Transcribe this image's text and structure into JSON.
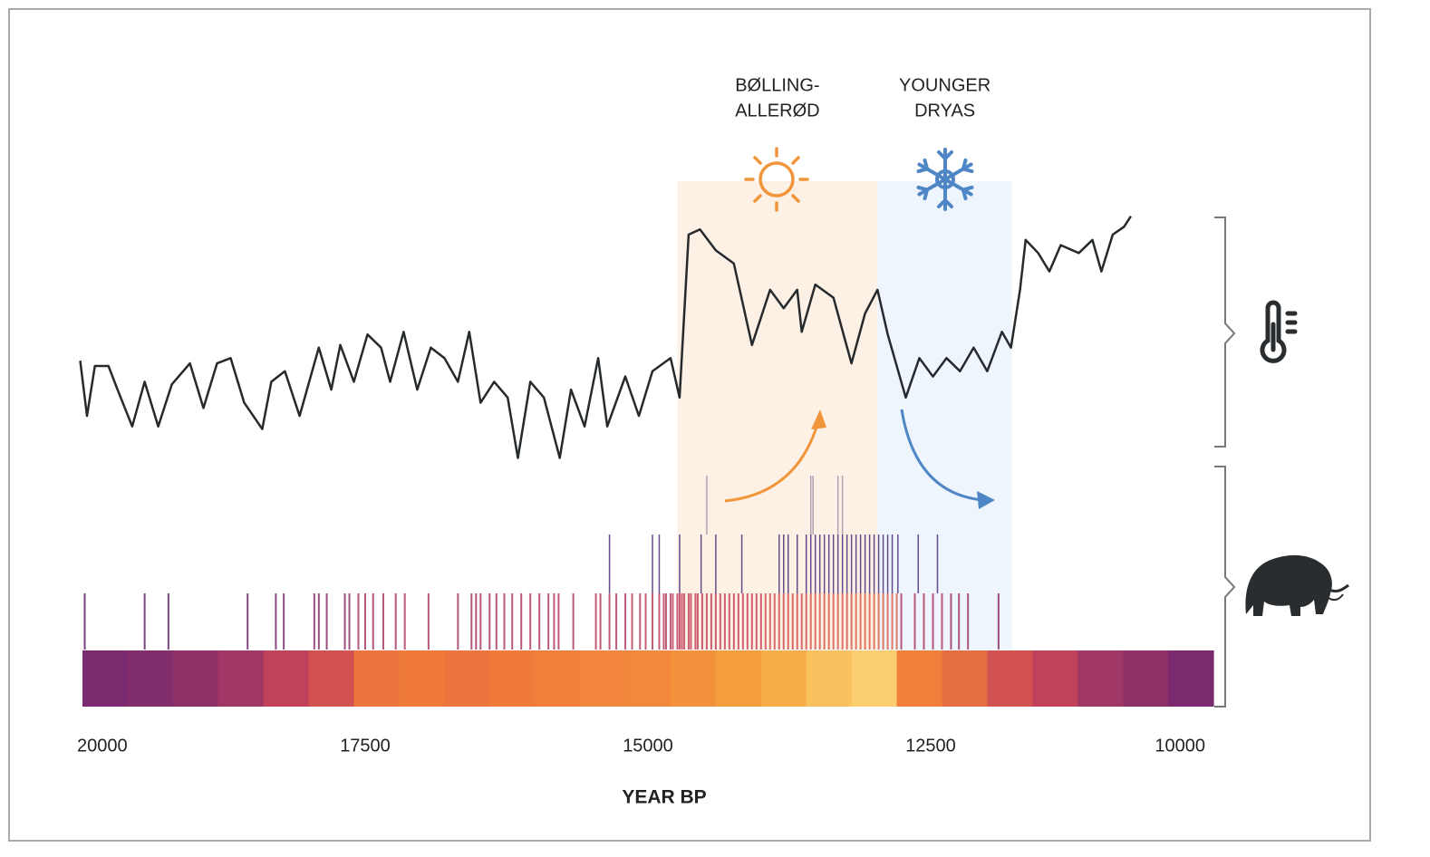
{
  "chart_data": {
    "type": "line",
    "xlabel": "YEAR BP",
    "xlim": [
      20000,
      10000
    ],
    "xticks": [
      20000,
      17500,
      15000,
      12500,
      10000
    ],
    "ylim": [
      0,
      100
    ],
    "color": "#262a2c",
    "x": [
      20020,
      19960,
      19890,
      19770,
      19690,
      19560,
      19450,
      19330,
      19210,
      19050,
      18930,
      18810,
      18690,
      18570,
      18410,
      18330,
      18210,
      18080,
      17910,
      17800,
      17720,
      17600,
      17480,
      17360,
      17280,
      17160,
      17040,
      16920,
      16800,
      16680,
      16580,
      16480,
      16360,
      16240,
      16150,
      16040,
      15920,
      15780,
      15680,
      15560,
      15440,
      15360,
      15200,
      15080,
      14960,
      14800,
      14720,
      14640,
      14540,
      14400,
      14240,
      14080,
      13920,
      13800,
      13680,
      13640,
      13520,
      13360,
      13200,
      13080,
      12970,
      12880,
      12720,
      12600,
      12480,
      12360,
      12240,
      12120,
      12000,
      11870,
      11790,
      11710,
      11660,
      11550,
      11450,
      11350,
      11190,
      11070,
      10990,
      10890,
      10790,
      10730
    ],
    "values": [
      42,
      21,
      40,
      40,
      31,
      17,
      34,
      17,
      33,
      41,
      24,
      41,
      43,
      26,
      16,
      34,
      38,
      21,
      47,
      31,
      48,
      34,
      52,
      47,
      34,
      53,
      31,
      47,
      43,
      34,
      53,
      26,
      34,
      28,
      5,
      34,
      28,
      5,
      31,
      17,
      43,
      17,
      36,
      21,
      38,
      43,
      28,
      90,
      92,
      84,
      79,
      48,
      69,
      62,
      69,
      53,
      71,
      66,
      41,
      60,
      69,
      52,
      28,
      43,
      36,
      43,
      38,
      47,
      38,
      53,
      47,
      69,
      88,
      83,
      76,
      86,
      83,
      88,
      76,
      90,
      93,
      97
    ],
    "regions": [
      {
        "labels": [
          "BØLLING-",
          "ALLERØD"
        ],
        "start": 14740,
        "end": 12970,
        "color": "#fdf1e6"
      },
      {
        "labels": [
          "YOUNGER",
          "DRYAS"
        ],
        "start": 12970,
        "end": 11780,
        "color": "#eef5fc"
      }
    ],
    "heatmap": {
      "colormap": [
        "#3d1d66",
        "#7a2a6e",
        "#c8445a",
        "#ef7a3a",
        "#f6a840",
        "#fde68c"
      ],
      "bins": [
        20000,
        19600,
        19200,
        18800,
        18400,
        18000,
        17600,
        17200,
        16800,
        16400,
        16000,
        15600,
        15200,
        14800,
        14400,
        14000,
        13600,
        13200,
        12800,
        12400,
        12000,
        11600,
        11200,
        10800,
        10400,
        10000
      ],
      "values": [
        0.2,
        0.22,
        0.25,
        0.3,
        0.38,
        0.45,
        0.58,
        0.6,
        0.58,
        0.6,
        0.62,
        0.65,
        0.66,
        0.7,
        0.75,
        0.82,
        0.88,
        0.92,
        0.62,
        0.55,
        0.45,
        0.38,
        0.3,
        0.25,
        0.2
      ]
    },
    "rug": [
      {
        "values": [
          19980,
          19450,
          19240,
          18540,
          18290,
          18220,
          17950,
          17910,
          17840,
          17680,
          17640,
          17560,
          17500,
          17430,
          17340,
          17230,
          17150,
          16940,
          16680,
          16560,
          16520,
          16480,
          16400,
          16340,
          16270,
          16200,
          16120,
          16040,
          15960,
          15880,
          15830,
          15790,
          15660,
          15460,
          15420,
          15340,
          15280,
          15200,
          15140,
          15070,
          15020,
          14960,
          14900,
          14860,
          14840,
          14800,
          14780,
          14740,
          14720,
          14700,
          14680,
          14640,
          14620,
          14580,
          14560,
          14520,
          14480,
          14440,
          14400,
          14360,
          14320,
          14280,
          14240,
          14200,
          14160,
          14120,
          14080,
          14040,
          14000,
          13960,
          13920,
          13880,
          13840,
          13800,
          13760,
          13720,
          13680,
          13640,
          13600,
          13560,
          13520,
          13480,
          13440,
          13400,
          13360,
          13320,
          13280,
          13240,
          13200,
          13160,
          13120,
          13080,
          13040,
          13000,
          12960,
          12920,
          12880,
          12840,
          12800,
          12760,
          12640,
          12560,
          12480,
          12400,
          12320,
          12250,
          12170,
          11900
        ]
      },
      {
        "values": [
          15340,
          14960,
          14900,
          14720,
          14530,
          14400,
          14170,
          13840,
          13800,
          13760,
          13680,
          13600,
          13560,
          13520,
          13480,
          13440,
          13400,
          13360,
          13320,
          13280,
          13240,
          13200,
          13160,
          13120,
          13080,
          13040,
          13000,
          12960,
          12920,
          12880,
          12840,
          12790,
          12610,
          12440
        ]
      },
      {
        "values": [
          14480,
          13560,
          13540,
          13320,
          13280
        ]
      }
    ]
  }
}
